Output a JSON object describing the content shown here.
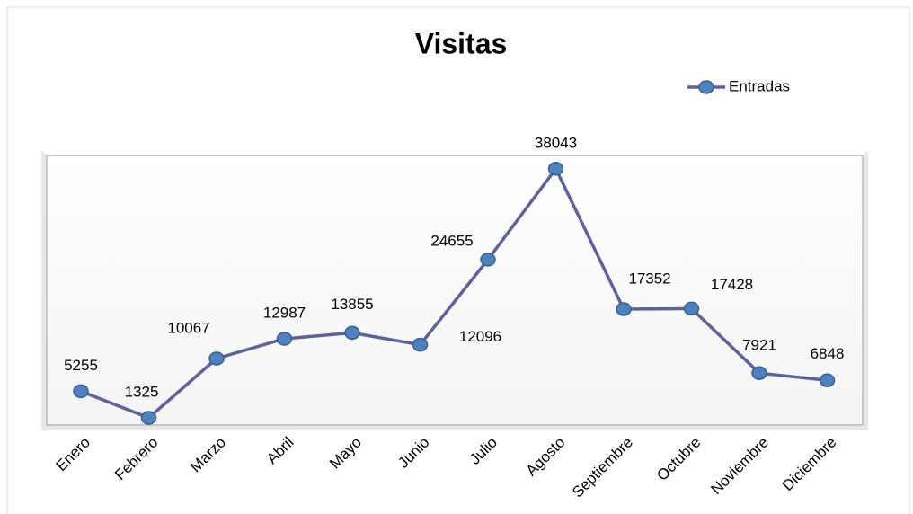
{
  "chart_data": {
    "type": "line",
    "title": "Visitas",
    "categories": [
      "Enero",
      "Febrero",
      "Marzo",
      "Abril",
      "Mayo",
      "Junio",
      "Julio",
      "Agosto",
      "Septiembre",
      "Octubre",
      "Noviembre",
      "Diciembre"
    ],
    "series": [
      {
        "name": "Entradas",
        "color": "#5e6397",
        "marker_color": "#4f81bd",
        "values": [
          5255,
          1325,
          10067,
          12987,
          13855,
          12096,
          24655,
          38043,
          17352,
          17428,
          7921,
          6848
        ]
      }
    ],
    "ylim": [
      0,
      40000
    ],
    "legend": "top-right"
  }
}
